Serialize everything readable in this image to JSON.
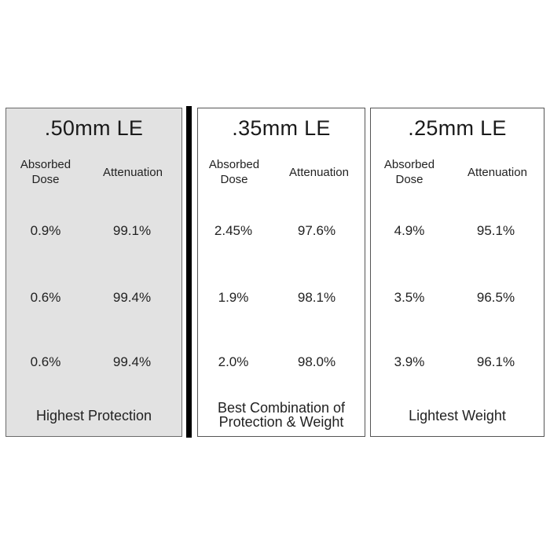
{
  "columns": [
    {
      "title": ".50mm LE",
      "header_absorbed": "Absorbed Dose",
      "header_attenuation": "Attenuation",
      "rows": [
        {
          "absorbed": "0.9%",
          "attenuation": "99.1%"
        },
        {
          "absorbed": "0.6%",
          "attenuation": "99.4%"
        },
        {
          "absorbed": "0.6%",
          "attenuation": "99.4%"
        }
      ],
      "footer": "Highest Protection",
      "background": "#e2e2e2"
    },
    {
      "title": ".35mm LE",
      "header_absorbed": "Absorbed Dose",
      "header_attenuation": "Attenuation",
      "rows": [
        {
          "absorbed": "2.45%",
          "attenuation": "97.6%"
        },
        {
          "absorbed": "1.9%",
          "attenuation": "98.1%"
        },
        {
          "absorbed": "2.0%",
          "attenuation": "98.0%"
        }
      ],
      "footer": "Best Combination of Protection & Weight",
      "background": "#ffffff"
    },
    {
      "title": ".25mm LE",
      "header_absorbed": "Absorbed Dose",
      "header_attenuation": "Attenuation",
      "rows": [
        {
          "absorbed": "4.9%",
          "attenuation": "95.1%"
        },
        {
          "absorbed": "3.5%",
          "attenuation": "96.5%"
        },
        {
          "absorbed": "3.9%",
          "attenuation": "96.1%"
        }
      ],
      "footer": "Lightest Weight",
      "background": "#ffffff"
    }
  ],
  "colors": {
    "divider": "#000000",
    "border": "#555555",
    "text": "#222222"
  }
}
